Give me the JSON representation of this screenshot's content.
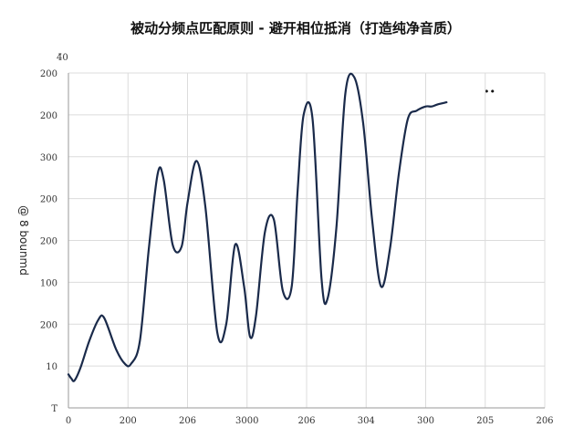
{
  "title": "被动分频点匹配原则 - 避开相位抵消（打造纯净音质）",
  "corner_label": "4̈0",
  "legend_marker": "••",
  "chart_data": {
    "type": "line",
    "title": "被动分频点匹配原则 - 避开相位抵消（打造纯净音质）",
    "xlabel": "",
    "ylabel": "@ 8 bounmd",
    "ylabel_rotated": true,
    "grid": true,
    "x_tick_labels": [
      "0",
      "200",
      "206",
      "3000",
      "206",
      "304",
      "300",
      "205",
      "206"
    ],
    "y_tick_labels": [
      "T",
      "10",
      "200",
      "100",
      "200",
      "200",
      "300",
      "200",
      "200"
    ],
    "xlim": [
      0,
      8
    ],
    "ylim": [
      0,
      8
    ],
    "series": [
      {
        "name": "",
        "color": "#1a2a4a",
        "x": [
          0,
          0.05,
          0.1,
          0.2,
          0.35,
          0.5,
          0.6,
          0.8,
          0.95,
          1.05,
          1.2,
          1.35,
          1.5,
          1.6,
          1.75,
          1.9,
          2.0,
          2.15,
          2.3,
          2.5,
          2.65,
          2.8,
          2.95,
          3.05,
          3.15,
          3.3,
          3.45,
          3.6,
          3.75,
          3.85,
          3.95,
          4.1,
          4.25,
          4.35,
          4.5,
          4.65,
          4.8,
          4.95,
          5.1,
          5.25,
          5.4,
          5.55,
          5.7,
          5.85,
          6.0,
          6.1,
          6.2,
          6.35
        ],
        "y": [
          0.8,
          0.7,
          0.65,
          0.95,
          1.6,
          2.1,
          2.15,
          1.4,
          1.05,
          1.05,
          1.6,
          3.8,
          5.6,
          5.45,
          3.9,
          3.85,
          4.9,
          5.9,
          4.8,
          1.8,
          2.0,
          3.9,
          2.9,
          1.7,
          2.2,
          4.2,
          4.5,
          2.8,
          2.9,
          5.2,
          7.0,
          6.9,
          3.1,
          2.6,
          4.3,
          7.5,
          7.9,
          6.8,
          4.5,
          2.9,
          3.8,
          5.6,
          6.9,
          7.1,
          7.2,
          7.2,
          7.25,
          7.3
        ]
      }
    ]
  }
}
